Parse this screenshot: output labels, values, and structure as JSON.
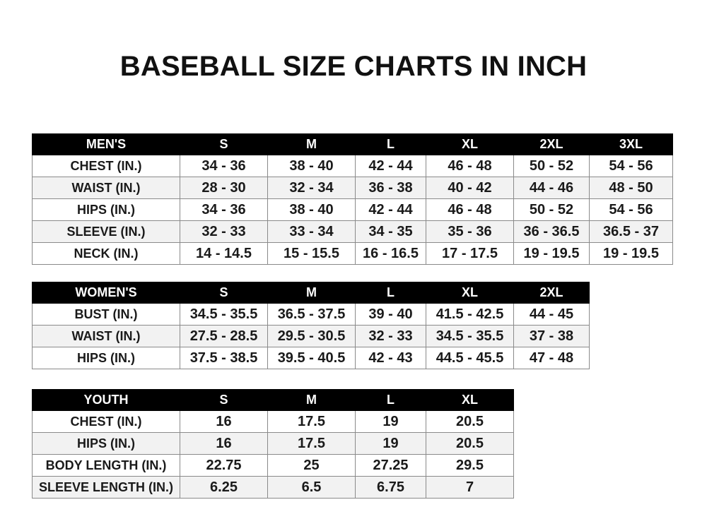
{
  "title": "BASEBALL SIZE CHARTS IN INCH",
  "tables": [
    {
      "id": "men",
      "header": [
        "MEN'S",
        "S",
        "M",
        "L",
        "XL",
        "2XL",
        "3XL"
      ],
      "rows": [
        [
          "CHEST (IN.)",
          "34 - 36",
          "38 - 40",
          "42 - 44",
          "46 - 48",
          "50 - 52",
          "54 - 56"
        ],
        [
          "WAIST (IN.)",
          "28 - 30",
          "32 - 34",
          "36 - 38",
          "40 - 42",
          "44 - 46",
          "48 - 50"
        ],
        [
          "HIPS (IN.)",
          "34 - 36",
          "38 - 40",
          "42 - 44",
          "46 - 48",
          "50 - 52",
          "54 - 56"
        ],
        [
          "SLEEVE (IN.)",
          "32 - 33",
          "33 - 34",
          "34 - 35",
          "35 - 36",
          "36 - 36.5",
          "36.5 - 37"
        ],
        [
          "NECK (IN.)",
          "14 - 14.5",
          "15 - 15.5",
          "16 - 16.5",
          "17 - 17.5",
          "19 - 19.5",
          "19 - 19.5"
        ]
      ]
    },
    {
      "id": "women",
      "header": [
        "WOMEN'S",
        "S",
        "M",
        "L",
        "XL",
        "2XL"
      ],
      "rows": [
        [
          "BUST (IN.)",
          "34.5 - 35.5",
          "36.5 - 37.5",
          "39 - 40",
          "41.5 - 42.5",
          "44 - 45"
        ],
        [
          "WAIST (IN.)",
          "27.5 - 28.5",
          "29.5 - 30.5",
          "32 - 33",
          "34.5 - 35.5",
          "37 - 38"
        ],
        [
          "HIPS (IN.)",
          "37.5 - 38.5",
          "39.5 - 40.5",
          "42 - 43",
          "44.5 - 45.5",
          "47 - 48"
        ]
      ]
    },
    {
      "id": "youth",
      "header": [
        "YOUTH",
        "S",
        "M",
        "L",
        "XL"
      ],
      "rows": [
        [
          "CHEST (IN.)",
          "16",
          "17.5",
          "19",
          "20.5"
        ],
        [
          "HIPS (IN.)",
          "16",
          "17.5",
          "19",
          "20.5"
        ],
        [
          "BODY LENGTH (IN.)",
          "22.75",
          "25",
          "27.25",
          "29.5"
        ],
        [
          "SLEEVE LENGTH (IN.)",
          "6.25",
          "6.5",
          "6.75",
          "7"
        ]
      ]
    }
  ]
}
